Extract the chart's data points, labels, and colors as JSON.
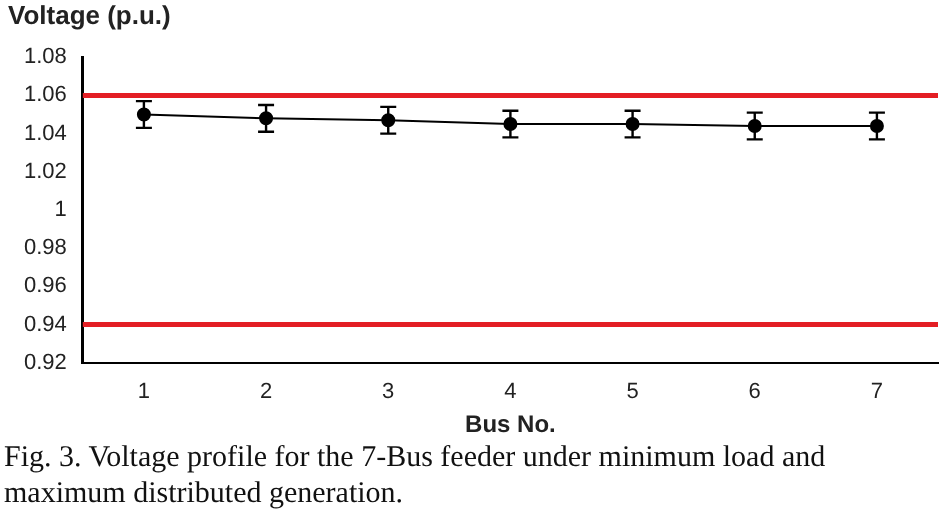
{
  "chart_data": {
    "type": "line",
    "ylabel": "Voltage (p.u.)",
    "xlabel": "Bus No.",
    "categories": [
      "1",
      "2",
      "3",
      "4",
      "5",
      "6",
      "7"
    ],
    "series": [
      {
        "color": "#000000",
        "values": [
          1.05,
          1.048,
          1.047,
          1.045,
          1.045,
          1.044,
          1.044
        ],
        "errors": [
          0.007,
          0.007,
          0.007,
          0.007,
          0.007,
          0.007,
          0.007
        ]
      }
    ],
    "ylim": [
      0.92,
      1.08
    ],
    "yticks": [
      0.92,
      0.94,
      0.96,
      0.98,
      1,
      1.02,
      1.04,
      1.06,
      1.08
    ],
    "ref_lines": [
      {
        "axis": "y",
        "value": 1.06,
        "color": "#e31e24"
      },
      {
        "axis": "y",
        "value": 0.94,
        "color": "#e31e24"
      }
    ],
    "grid": false,
    "legend": false,
    "marker": "circle",
    "line_style": "solid",
    "annotations": [
      "Fig. 3. Voltage profile for the 7-Bus feeder under minimum load and maximum distributed generation."
    ]
  }
}
